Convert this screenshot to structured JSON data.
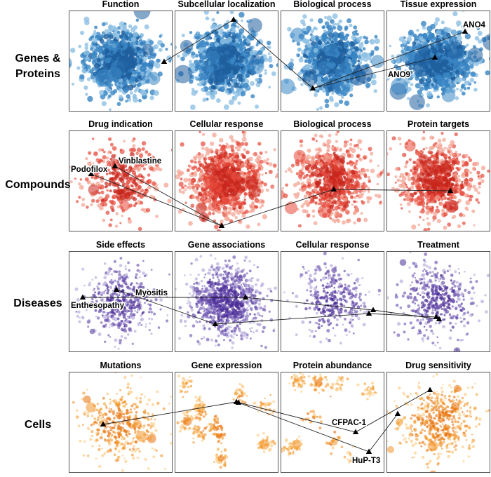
{
  "rows": [
    {
      "label": [
        "Genes &",
        "Proteins"
      ],
      "palette": {
        "dark": "#1f5f9e",
        "mid": "#3a86c4",
        "light": "#8fc1e3"
      },
      "panels": [
        {
          "title": "Function"
        },
        {
          "title": "Subcellular localization"
        },
        {
          "title": "Biological process"
        },
        {
          "title": "Tissue expression"
        }
      ],
      "annotations": [
        "ANO4",
        "ANO9"
      ]
    },
    {
      "label": [
        "Compounds"
      ],
      "palette": {
        "dark": "#c8261c",
        "mid": "#e5493a",
        "light": "#f4a08f"
      },
      "panels": [
        {
          "title": "Drug indication"
        },
        {
          "title": "Cellular response"
        },
        {
          "title": "Biological process"
        },
        {
          "title": "Protein targets"
        }
      ],
      "annotations": [
        "Vinblastine",
        "Podofilox"
      ]
    },
    {
      "label": [
        "Diseases"
      ],
      "palette": {
        "dark": "#4b2d96",
        "mid": "#7159b5",
        "light": "#b3a7d8"
      },
      "panels": [
        {
          "title": "Side effects"
        },
        {
          "title": "Gene associations"
        },
        {
          "title": "Cellular response"
        },
        {
          "title": "Treatment"
        }
      ],
      "annotations": [
        "Myositis",
        "Enthesopathy"
      ]
    },
    {
      "label": [
        "Cells"
      ],
      "palette": {
        "dark": "#e8720c",
        "mid": "#f3962a",
        "light": "#fbc77a"
      },
      "panels": [
        {
          "title": "Mutations"
        },
        {
          "title": "Gene expression"
        },
        {
          "title": "Protein abundance"
        },
        {
          "title": "Drug sensitivity"
        }
      ],
      "annotations": [
        "CFPAC-1",
        "HuP-T3"
      ]
    }
  ]
}
